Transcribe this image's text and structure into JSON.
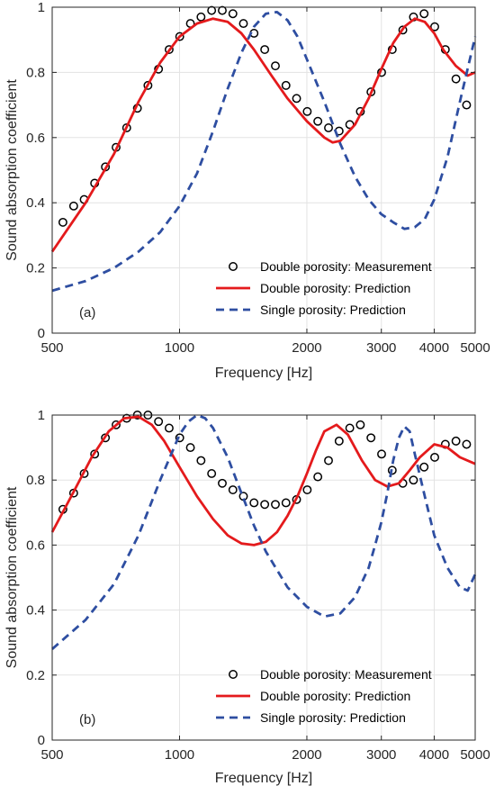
{
  "chart_data": [
    {
      "type": "line",
      "panel_tag": "(a)",
      "xlabel": "Frequency [Hz]",
      "ylabel": "Sound absorption coefficient",
      "xscale": "log",
      "xlim": [
        500,
        5000
      ],
      "ylim": [
        0,
        1
      ],
      "xticks": [
        500,
        1000,
        2000,
        3000,
        4000,
        5000
      ],
      "xtick_labels": [
        "500",
        "1000",
        "2000",
        "3000",
        "4000",
        "5000"
      ],
      "yticks": [
        0,
        0.2,
        0.4,
        0.6,
        0.8,
        1
      ],
      "ytick_labels": [
        "0",
        "0.2",
        "0.4",
        "0.6",
        "0.8",
        "1"
      ],
      "grid": true,
      "legend_position": "bottom-right",
      "series": [
        {
          "name": "Double porosity: Measurement",
          "style": "markers",
          "color": "#000000",
          "x": [
            530,
            562,
            595,
            630,
            668,
            708,
            750,
            795,
            842,
            892,
            945,
            1001,
            1061,
            1124,
            1191,
            1262,
            1337,
            1416,
            1500,
            1590,
            1685,
            1785,
            1891,
            2004,
            2123,
            2250,
            2384,
            2526,
            2676,
            2835,
            3004,
            3183,
            3372,
            3573,
            3786,
            4011,
            4250,
            4503,
            4771
          ],
          "y": [
            0.34,
            0.39,
            0.41,
            0.46,
            0.51,
            0.57,
            0.63,
            0.69,
            0.76,
            0.81,
            0.87,
            0.91,
            0.95,
            0.97,
            0.99,
            0.99,
            0.98,
            0.95,
            0.92,
            0.87,
            0.82,
            0.76,
            0.72,
            0.68,
            0.65,
            0.63,
            0.62,
            0.64,
            0.68,
            0.74,
            0.8,
            0.87,
            0.93,
            0.97,
            0.98,
            0.94,
            0.87,
            0.78,
            0.7
          ]
        },
        {
          "name": "Double porosity: Prediction",
          "style": "solid",
          "color": "#e41a1c",
          "x": [
            500,
            600,
            700,
            800,
            900,
            1000,
            1100,
            1200,
            1300,
            1400,
            1500,
            1650,
            1800,
            2000,
            2200,
            2300,
            2400,
            2600,
            2800,
            3000,
            3200,
            3400,
            3600,
            3800,
            4000,
            4200,
            4500,
            4800,
            5000
          ],
          "y": [
            0.25,
            0.4,
            0.55,
            0.71,
            0.83,
            0.91,
            0.95,
            0.965,
            0.955,
            0.92,
            0.87,
            0.79,
            0.72,
            0.65,
            0.6,
            0.585,
            0.59,
            0.64,
            0.72,
            0.81,
            0.89,
            0.94,
            0.965,
            0.955,
            0.92,
            0.87,
            0.82,
            0.79,
            0.8
          ]
        },
        {
          "name": "Single porosity: Prediction",
          "style": "dashed",
          "color": "#2e4ea1",
          "x": [
            500,
            600,
            700,
            800,
            900,
            1000,
            1100,
            1200,
            1300,
            1400,
            1500,
            1600,
            1700,
            1800,
            1900,
            2000,
            2200,
            2400,
            2600,
            2800,
            3000,
            3200,
            3400,
            3600,
            3800,
            4000,
            4300,
            4600,
            5000
          ],
          "y": [
            0.13,
            0.16,
            0.2,
            0.25,
            0.31,
            0.39,
            0.49,
            0.62,
            0.75,
            0.86,
            0.94,
            0.98,
            0.985,
            0.96,
            0.91,
            0.84,
            0.71,
            0.58,
            0.48,
            0.41,
            0.365,
            0.34,
            0.32,
            0.325,
            0.35,
            0.41,
            0.54,
            0.71,
            0.91
          ]
        }
      ]
    },
    {
      "type": "line",
      "panel_tag": "(b)",
      "xlabel": "Frequency [Hz]",
      "ylabel": "Sound absorption coefficient",
      "xscale": "log",
      "xlim": [
        500,
        5000
      ],
      "ylim": [
        0,
        1
      ],
      "xticks": [
        500,
        1000,
        2000,
        3000,
        4000,
        5000
      ],
      "xtick_labels": [
        "500",
        "1000",
        "2000",
        "3000",
        "4000",
        "5000"
      ],
      "yticks": [
        0,
        0.2,
        0.4,
        0.6,
        0.8,
        1
      ],
      "ytick_labels": [
        "0",
        "0.2",
        "0.4",
        "0.6",
        "0.8",
        "1"
      ],
      "grid": true,
      "legend_position": "bottom-right",
      "series": [
        {
          "name": "Double porosity: Measurement",
          "style": "markers",
          "color": "#000000",
          "x": [
            530,
            562,
            595,
            630,
            668,
            708,
            750,
            795,
            842,
            892,
            945,
            1001,
            1061,
            1124,
            1191,
            1262,
            1337,
            1416,
            1500,
            1590,
            1685,
            1785,
            1891,
            2004,
            2123,
            2250,
            2384,
            2526,
            2676,
            2835,
            3004,
            3183,
            3372,
            3573,
            3786,
            4011,
            4250,
            4503,
            4771
          ],
          "y": [
            0.71,
            0.76,
            0.82,
            0.88,
            0.93,
            0.97,
            0.99,
            1.0,
            1.0,
            0.98,
            0.96,
            0.93,
            0.9,
            0.86,
            0.82,
            0.79,
            0.77,
            0.75,
            0.73,
            0.725,
            0.725,
            0.73,
            0.74,
            0.77,
            0.81,
            0.86,
            0.92,
            0.96,
            0.97,
            0.93,
            0.88,
            0.83,
            0.79,
            0.8,
            0.84,
            0.87,
            0.91,
            0.92,
            0.91
          ]
        },
        {
          "name": "Double porosity: Prediction",
          "style": "solid",
          "color": "#e41a1c",
          "x": [
            500,
            560,
            620,
            680,
            740,
            800,
            860,
            920,
            1000,
            1100,
            1200,
            1300,
            1400,
            1500,
            1600,
            1700,
            1800,
            1900,
            2000,
            2100,
            2200,
            2350,
            2500,
            2700,
            2900,
            3100,
            3300,
            3500,
            3700,
            4000,
            4300,
            4600,
            5000
          ],
          "y": [
            0.64,
            0.76,
            0.87,
            0.95,
            0.99,
            0.995,
            0.97,
            0.92,
            0.84,
            0.75,
            0.68,
            0.63,
            0.605,
            0.6,
            0.61,
            0.64,
            0.69,
            0.75,
            0.82,
            0.89,
            0.95,
            0.97,
            0.94,
            0.86,
            0.8,
            0.78,
            0.79,
            0.83,
            0.87,
            0.91,
            0.9,
            0.87,
            0.85
          ]
        },
        {
          "name": "Single porosity: Prediction",
          "style": "dashed",
          "color": "#2e4ea1",
          "x": [
            500,
            600,
            700,
            800,
            900,
            1000,
            1050,
            1100,
            1150,
            1200,
            1300,
            1400,
            1500,
            1600,
            1800,
            2000,
            2200,
            2400,
            2600,
            2800,
            2900,
            3000,
            3100,
            3200,
            3300,
            3400,
            3500,
            3600,
            3800,
            4000,
            4300,
            4600,
            4800,
            5000
          ],
          "y": [
            0.28,
            0.37,
            0.48,
            0.63,
            0.8,
            0.94,
            0.98,
            1.0,
            0.99,
            0.96,
            0.87,
            0.76,
            0.66,
            0.58,
            0.47,
            0.41,
            0.38,
            0.39,
            0.44,
            0.53,
            0.6,
            0.67,
            0.76,
            0.86,
            0.93,
            0.965,
            0.95,
            0.88,
            0.75,
            0.63,
            0.53,
            0.47,
            0.46,
            0.51
          ]
        }
      ]
    }
  ]
}
